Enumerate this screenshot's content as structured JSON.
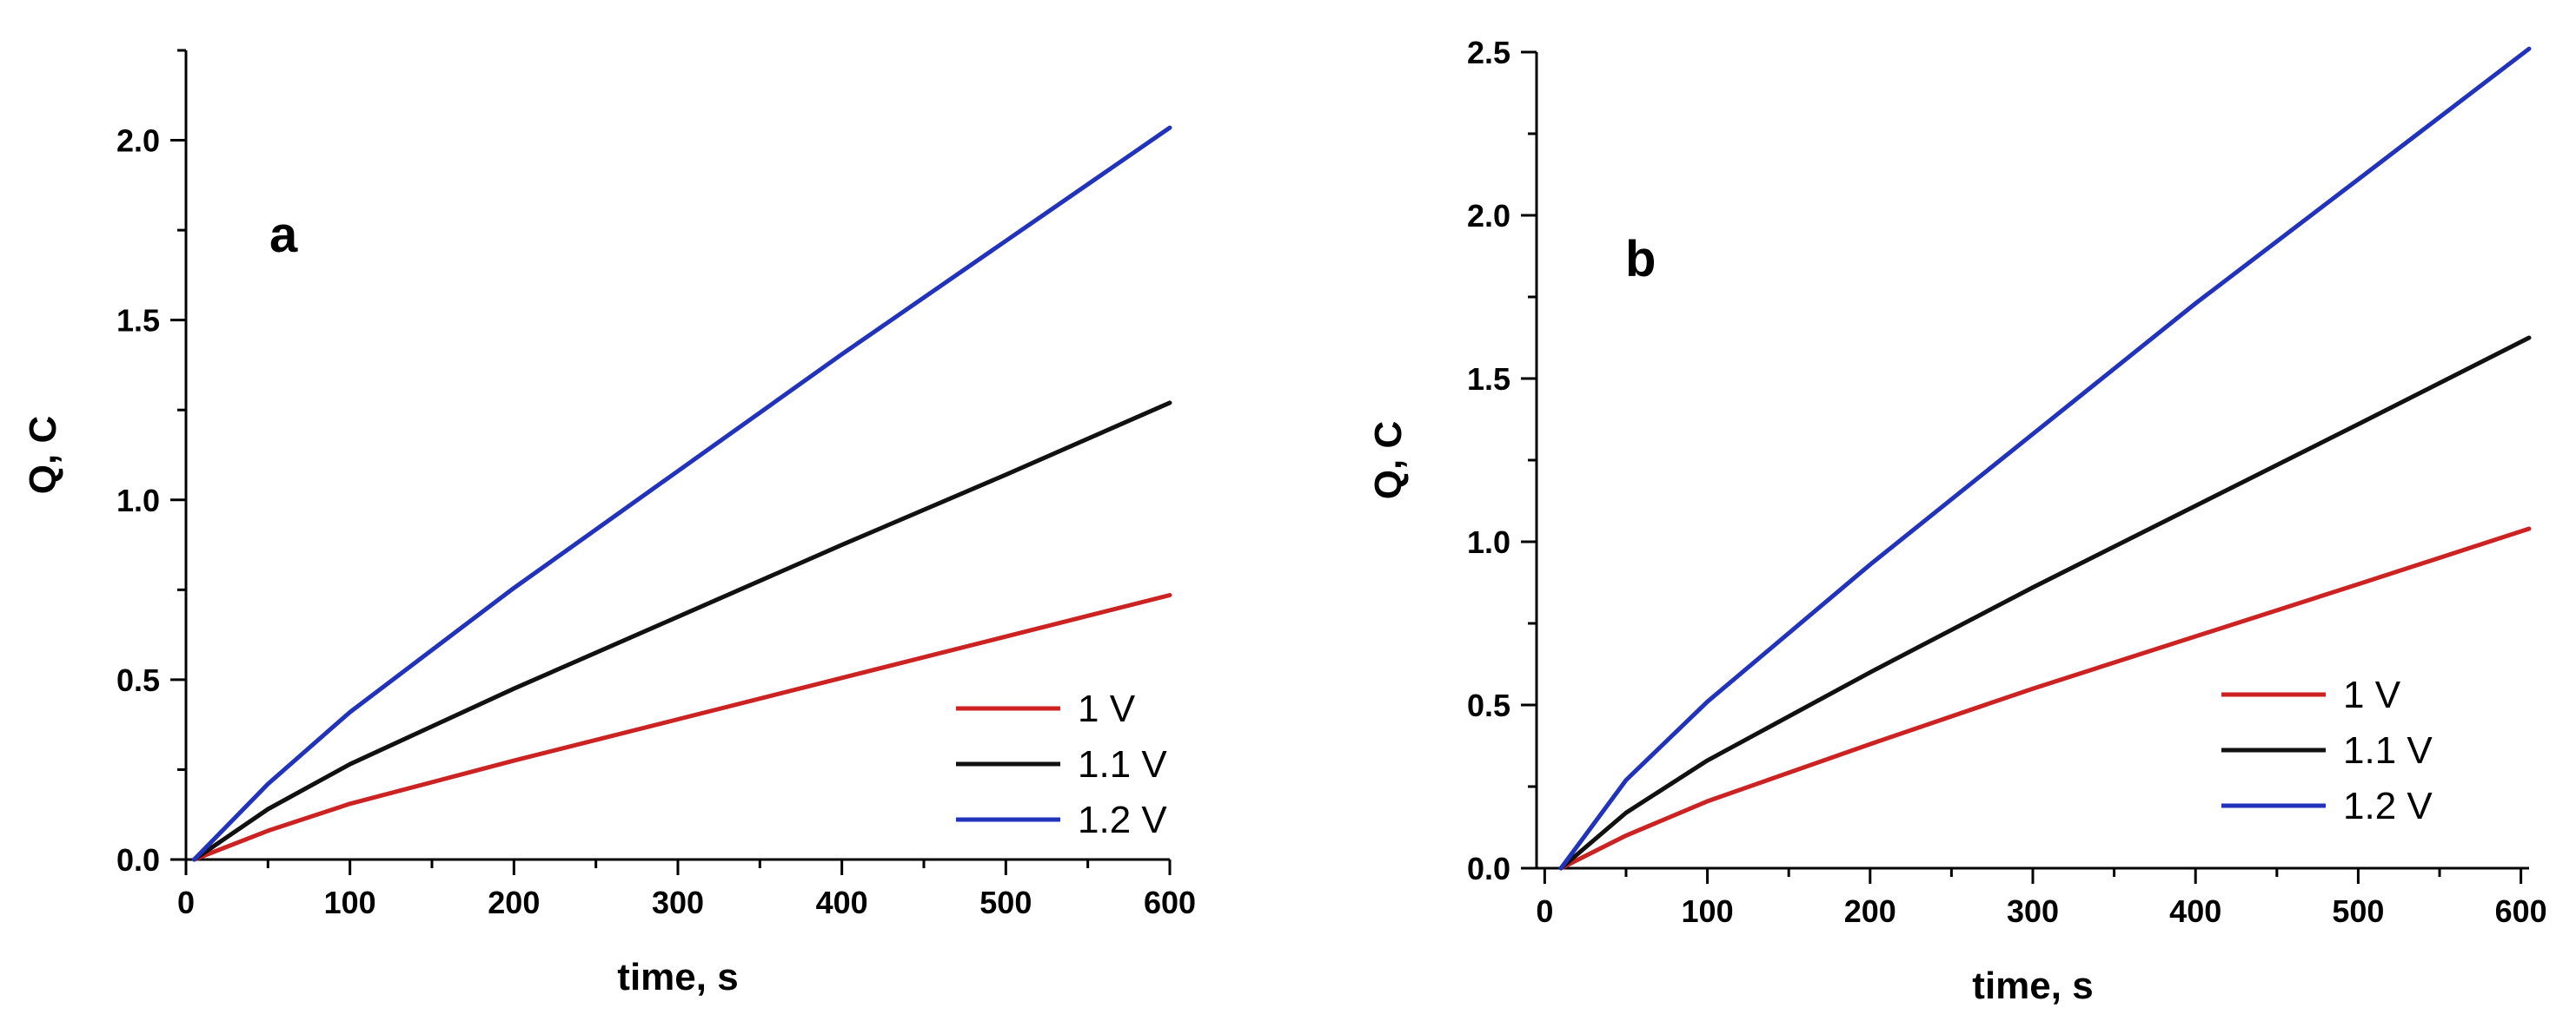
{
  "chart_data": [
    {
      "type": "line",
      "panel_label": "a",
      "xlabel": "time, s",
      "ylabel": "Q, C",
      "xlim": [
        0,
        600
      ],
      "ylim": [
        0,
        2.25
      ],
      "xticks": [
        0,
        100,
        200,
        300,
        400,
        500,
        600
      ],
      "yticks": [
        0.0,
        0.5,
        1.0,
        1.5,
        2.0
      ],
      "xtick_labels": [
        "0",
        "100",
        "200",
        "300",
        "400",
        "500",
        "600"
      ],
      "ytick_labels": [
        "0.0",
        "0.5",
        "1.0",
        "1.5",
        "2.0"
      ],
      "legend_position": "bottom-right",
      "series": [
        {
          "name": "1 V",
          "color": "#cc2222",
          "x": [
            5,
            50,
            100,
            200,
            300,
            400,
            500,
            600
          ],
          "y": [
            0,
            0.08,
            0.155,
            0.275,
            0.39,
            0.505,
            0.62,
            0.735
          ]
        },
        {
          "name": "1.1 V",
          "color": "#111111",
          "x": [
            5,
            50,
            100,
            200,
            300,
            400,
            500,
            600
          ],
          "y": [
            0,
            0.14,
            0.265,
            0.475,
            0.675,
            0.875,
            1.07,
            1.27
          ]
        },
        {
          "name": "1.2 V",
          "color": "#2233bb",
          "x": [
            5,
            50,
            100,
            200,
            300,
            400,
            500,
            600
          ],
          "y": [
            0,
            0.21,
            0.41,
            0.755,
            1.08,
            1.405,
            1.72,
            2.035
          ]
        }
      ]
    },
    {
      "type": "line",
      "panel_label": "b",
      "xlabel": "time, s",
      "ylabel": "Q, C",
      "xlim": [
        -5,
        605
      ],
      "ylim": [
        0,
        2.5
      ],
      "xticks": [
        0,
        100,
        200,
        300,
        400,
        500,
        600
      ],
      "yticks": [
        0.0,
        0.5,
        1.0,
        1.5,
        2.0,
        2.5
      ],
      "xtick_labels": [
        "0",
        "100",
        "200",
        "300",
        "400",
        "500",
        "600"
      ],
      "ytick_labels": [
        "0.0",
        "0.5",
        "1.0",
        "1.5",
        "2.0",
        "2.5"
      ],
      "legend_position": "bottom-right",
      "series": [
        {
          "name": "1 V",
          "color": "#cc2222",
          "x": [
            10,
            50,
            100,
            200,
            300,
            400,
            500,
            605
          ],
          "y": [
            0,
            0.1,
            0.205,
            0.38,
            0.55,
            0.71,
            0.87,
            1.04
          ]
        },
        {
          "name": "1.1 V",
          "color": "#111111",
          "x": [
            10,
            50,
            100,
            200,
            300,
            400,
            500,
            605
          ],
          "y": [
            0,
            0.17,
            0.33,
            0.6,
            0.86,
            1.11,
            1.36,
            1.625
          ]
        },
        {
          "name": "1.2 V",
          "color": "#2233bb",
          "x": [
            10,
            50,
            100,
            200,
            300,
            400,
            500,
            605
          ],
          "y": [
            0,
            0.27,
            0.51,
            0.93,
            1.33,
            1.73,
            2.11,
            2.51
          ]
        }
      ]
    }
  ]
}
